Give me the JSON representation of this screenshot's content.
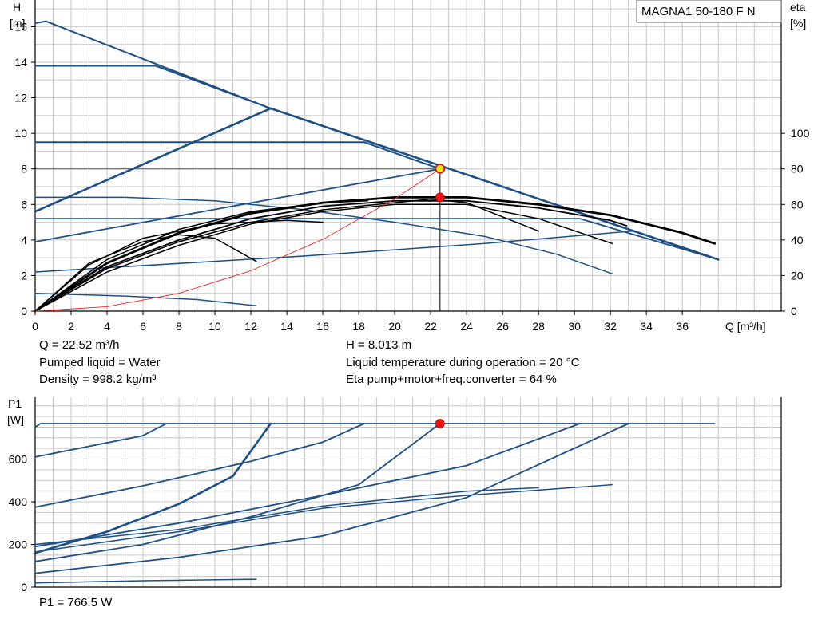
{
  "chart_data": [
    {
      "type": "line",
      "title": "MAGNA1 50-180 F N",
      "xlabel": "Q [m³/h]",
      "ylabel": [
        "H",
        "[m]"
      ],
      "y2label": [
        "eta",
        "[%]"
      ],
      "xlim": [
        0,
        41.5
      ],
      "ylim": [
        0,
        17.5
      ],
      "y2lim": [
        0,
        175
      ],
      "x_ticks": [
        "0",
        "2",
        "4",
        "6",
        "8",
        "10",
        "12",
        "14",
        "16",
        "18",
        "20",
        "22",
        "24",
        "26",
        "28",
        "30",
        "32",
        "34",
        "36"
      ],
      "y_ticks": [
        "0",
        "2",
        "4",
        "6",
        "8",
        "10",
        "12",
        "14",
        "16"
      ],
      "y2_ticks": [
        "0",
        "20",
        "40",
        "60",
        "80",
        "100"
      ],
      "grid": true,
      "colors": {
        "pump": "#1d4f86",
        "eta": "#000000",
        "system": "#ee2222",
        "duty": "#ee1111",
        "duty_head": "#f5e025"
      },
      "series": [
        {
          "kind": "pump",
          "width": 2.6,
          "points": [
            [
              0,
              5.6
            ],
            [
              13.1,
              11.4
            ],
            [
              38,
              2.9
            ]
          ]
        },
        {
          "kind": "pump",
          "width": 2.0,
          "points": [
            [
              0,
              16.2
            ],
            [
              0.6,
              16.3
            ],
            [
              13.1,
              11.4
            ]
          ]
        },
        {
          "kind": "pump",
          "width": 2.0,
          "points": [
            [
              0,
              13.8
            ],
            [
              6.7,
              13.8
            ],
            [
              13.1,
              11.4
            ]
          ]
        },
        {
          "kind": "pump",
          "width": 2.0,
          "points": [
            [
              0,
              9.5
            ],
            [
              18.3,
              9.5
            ],
            [
              22.52,
              8.0
            ]
          ]
        },
        {
          "kind": "pump",
          "width": 1.8,
          "points": [
            [
              0,
              3.9
            ],
            [
              22.52,
              8.0
            ]
          ]
        },
        {
          "kind": "pump",
          "width": 1.8,
          "points": [
            [
              0,
              5.2
            ],
            [
              25,
              5.2
            ],
            [
              30.3,
              5.2
            ],
            [
              38,
              2.9
            ]
          ]
        },
        {
          "kind": "pump",
          "width": 1.5,
          "points": [
            [
              0,
              6.4
            ],
            [
              5,
              6.4
            ],
            [
              10,
              6.2
            ],
            [
              15,
              5.7
            ],
            [
              20,
              5.0
            ],
            [
              25,
              4.2
            ],
            [
              29,
              3.2
            ],
            [
              32.1,
              2.1
            ]
          ]
        },
        {
          "kind": "pump",
          "width": 1.5,
          "points": [
            [
              0,
              2.2
            ],
            [
              15,
              3.1
            ],
            [
              25,
              3.8
            ],
            [
              33.2,
              4.5
            ]
          ]
        },
        {
          "kind": "pump",
          "width": 1.5,
          "points": [
            [
              0,
              1.0
            ],
            [
              5,
              0.85
            ],
            [
              9,
              0.65
            ],
            [
              12.3,
              0.3
            ]
          ]
        },
        {
          "kind": "eta",
          "width": 2.8,
          "points": [
            [
              0,
              0
            ],
            [
              4,
              2.7
            ],
            [
              8,
              4.4
            ],
            [
              12,
              5.5
            ],
            [
              16,
              6.1
            ],
            [
              20,
              6.4
            ],
            [
              24,
              6.4
            ],
            [
              28,
              6.0
            ],
            [
              32,
              5.4
            ],
            [
              34,
              4.9
            ],
            [
              36,
              4.4
            ],
            [
              37.8,
              3.8
            ]
          ]
        },
        {
          "kind": "eta",
          "width": 1.8,
          "points": [
            [
              0,
              0
            ],
            [
              4,
              2.5
            ],
            [
              8,
              4.0
            ],
            [
              12,
              5.2
            ],
            [
              16,
              5.9
            ],
            [
              20,
              6.2
            ],
            [
              24,
              6.2
            ],
            [
              28,
              5.8
            ],
            [
              32,
              5.1
            ],
            [
              32.9,
              4.8
            ]
          ]
        },
        {
          "kind": "eta",
          "width": 1.5,
          "points": [
            [
              0,
              0
            ],
            [
              4,
              2.2
            ],
            [
              8,
              3.7
            ],
            [
              12,
              4.9
            ],
            [
              16,
              5.6
            ],
            [
              20,
              6.0
            ],
            [
              24,
              6.0
            ],
            [
              28,
              5.2
            ],
            [
              32.1,
              3.8
            ]
          ]
        },
        {
          "kind": "eta",
          "width": 1.5,
          "points": [
            [
              0,
              0
            ],
            [
              4,
              2.4
            ],
            [
              8,
              3.9
            ],
            [
              12,
              5.0
            ],
            [
              16,
              5.7
            ],
            [
              20,
              6.1
            ],
            [
              22,
              6.3
            ],
            [
              24,
              6.1
            ],
            [
              28,
              4.5
            ]
          ]
        },
        {
          "kind": "eta",
          "width": 1.5,
          "points": [
            [
              0,
              0
            ],
            [
              3,
              2.7
            ],
            [
              6,
              3.9
            ],
            [
              8,
              4.3
            ],
            [
              10,
              4.1
            ],
            [
              12.3,
              2.8
            ]
          ]
        },
        {
          "kind": "eta",
          "width": 1.5,
          "points": [
            [
              0,
              0
            ],
            [
              3,
              2.6
            ],
            [
              6,
              4.1
            ],
            [
              10,
              4.9
            ],
            [
              14,
              5.1
            ],
            [
              16,
              5.0
            ]
          ]
        },
        {
          "kind": "eta",
          "width": 1.5,
          "points": [
            [
              0,
              0
            ],
            [
              4,
              2.9
            ],
            [
              8,
              4.6
            ],
            [
              12,
              5.6
            ],
            [
              16,
              6.1
            ],
            [
              18.5,
              6.2
            ]
          ]
        },
        {
          "kind": "system",
          "width": 0.9,
          "points": [
            [
              0,
              0
            ],
            [
              4,
              0.25
            ],
            [
              8,
              1.0
            ],
            [
              12,
              2.27
            ],
            [
              16,
              4.04
            ],
            [
              20,
              6.31
            ],
            [
              22.52,
              8.0
            ]
          ]
        }
      ],
      "duty_point": {
        "x": 22.52,
        "y": 8.013,
        "eta_y": 6.4
      },
      "reference_line_y": 8.0
    },
    {
      "type": "line",
      "ylabel": [
        "P1",
        "[W]"
      ],
      "xlim": [
        0,
        41.5
      ],
      "ylim": [
        0,
        890
      ],
      "y_ticks": [
        "0",
        "200",
        "400",
        "600"
      ],
      "grid": true,
      "series": [
        {
          "width": 1.8,
          "points": [
            [
              0,
              750
            ],
            [
              0.3,
              766.5
            ],
            [
              37.8,
              766.5
            ]
          ]
        },
        {
          "width": 2.6,
          "points": [
            [
              0,
              160
            ],
            [
              4,
              260
            ],
            [
              8,
              390
            ],
            [
              11,
              520
            ],
            [
              13.1,
              766.5
            ]
          ]
        },
        {
          "width": 1.8,
          "points": [
            [
              0,
              610
            ],
            [
              3,
              660
            ],
            [
              6,
              710
            ],
            [
              7.3,
              766.5
            ]
          ]
        },
        {
          "width": 1.8,
          "points": [
            [
              0,
              375
            ],
            [
              6,
              475
            ],
            [
              12,
              590
            ],
            [
              16,
              680
            ],
            [
              18.3,
              766.5
            ]
          ]
        },
        {
          "width": 1.8,
          "points": [
            [
              0,
              120
            ],
            [
              6,
              200
            ],
            [
              12,
              330
            ],
            [
              18,
              480
            ],
            [
              22.52,
              766.5
            ]
          ]
        },
        {
          "width": 1.8,
          "points": [
            [
              0,
              190
            ],
            [
              8,
              300
            ],
            [
              16,
              430
            ],
            [
              24,
              570
            ],
            [
              30.3,
              766.5
            ]
          ]
        },
        {
          "width": 1.8,
          "points": [
            [
              0,
              65
            ],
            [
              8,
              140
            ],
            [
              16,
              240
            ],
            [
              24,
              420
            ],
            [
              33,
              766.5
            ]
          ]
        },
        {
          "width": 1.5,
          "points": [
            [
              0,
              165
            ],
            [
              8,
              260
            ],
            [
              16,
              370
            ],
            [
              24,
              430
            ],
            [
              32.1,
              480
            ]
          ]
        },
        {
          "width": 1.5,
          "points": [
            [
              0,
              200
            ],
            [
              8,
              270
            ],
            [
              16,
              380
            ],
            [
              24,
              450
            ],
            [
              28,
              466
            ]
          ]
        },
        {
          "width": 1.5,
          "points": [
            [
              0,
              20
            ],
            [
              6,
              30
            ],
            [
              12.3,
              37
            ]
          ]
        }
      ],
      "duty_point": {
        "x": 22.52,
        "y": 766.5
      }
    }
  ],
  "info": {
    "q": "Q = 22.52 m³/h",
    "h": "H = 8.013 m",
    "liquid": "Pumped liquid = Water",
    "temp": "Liquid temperature during operation = 20 °C",
    "density": "Density = 998.2 kg/m³",
    "eta": "Eta pump+motor+freq.converter = 64 %",
    "p1": "P1 = 766.5 W"
  }
}
